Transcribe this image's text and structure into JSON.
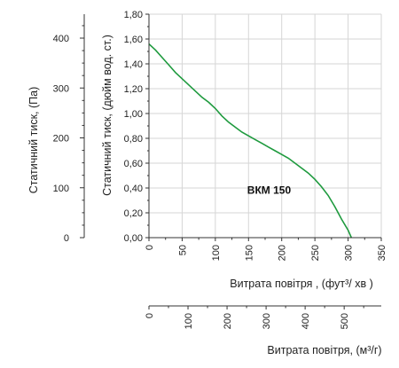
{
  "chart_data": {
    "type": "line",
    "series": [
      {
        "name": "ВКМ 150",
        "color": "#1e9a3e",
        "points": [
          [
            0,
            1.56
          ],
          [
            10,
            1.51
          ],
          [
            20,
            1.45
          ],
          [
            30,
            1.39
          ],
          [
            40,
            1.33
          ],
          [
            50,
            1.28
          ],
          [
            60,
            1.23
          ],
          [
            70,
            1.18
          ],
          [
            80,
            1.13
          ],
          [
            90,
            1.09
          ],
          [
            100,
            1.04
          ],
          [
            110,
            0.98
          ],
          [
            120,
            0.93
          ],
          [
            130,
            0.89
          ],
          [
            140,
            0.85
          ],
          [
            150,
            0.82
          ],
          [
            160,
            0.79
          ],
          [
            170,
            0.76
          ],
          [
            180,
            0.73
          ],
          [
            190,
            0.7
          ],
          [
            200,
            0.67
          ],
          [
            210,
            0.64
          ],
          [
            220,
            0.6
          ],
          [
            230,
            0.56
          ],
          [
            240,
            0.52
          ],
          [
            250,
            0.47
          ],
          [
            260,
            0.41
          ],
          [
            270,
            0.34
          ],
          [
            280,
            0.25
          ],
          [
            290,
            0.15
          ],
          [
            300,
            0.06
          ],
          [
            305,
            0.0
          ]
        ]
      }
    ],
    "x_axis_cfm": {
      "label": "Витрата повітря , (фут³/  хв )",
      "range": [
        0,
        350
      ],
      "ticks": [
        "0",
        "50",
        "100",
        "150",
        "200",
        "250",
        "300",
        "350"
      ]
    },
    "x_axis_m3h": {
      "label": "Витрата повітря, (м³/г)",
      "range": [
        0,
        595
      ],
      "ticks": [
        "0",
        "100",
        "200",
        "300",
        "400",
        "500"
      ]
    },
    "y_axis_inwg": {
      "label": "Статичний тиск, (дюйм вод. ст.)",
      "range": [
        0,
        1.8
      ],
      "ticks": [
        "0,00",
        "0,20",
        "0,40",
        "0,60",
        "0,80",
        "1,00",
        "1,20",
        "1,40",
        "1,60",
        "1,80"
      ]
    },
    "y_axis_pa": {
      "label": "Статичний тиск, (Па)",
      "range": [
        0,
        448
      ],
      "ticks": [
        "0",
        "100",
        "200",
        "300",
        "400"
      ]
    },
    "grid": true
  }
}
